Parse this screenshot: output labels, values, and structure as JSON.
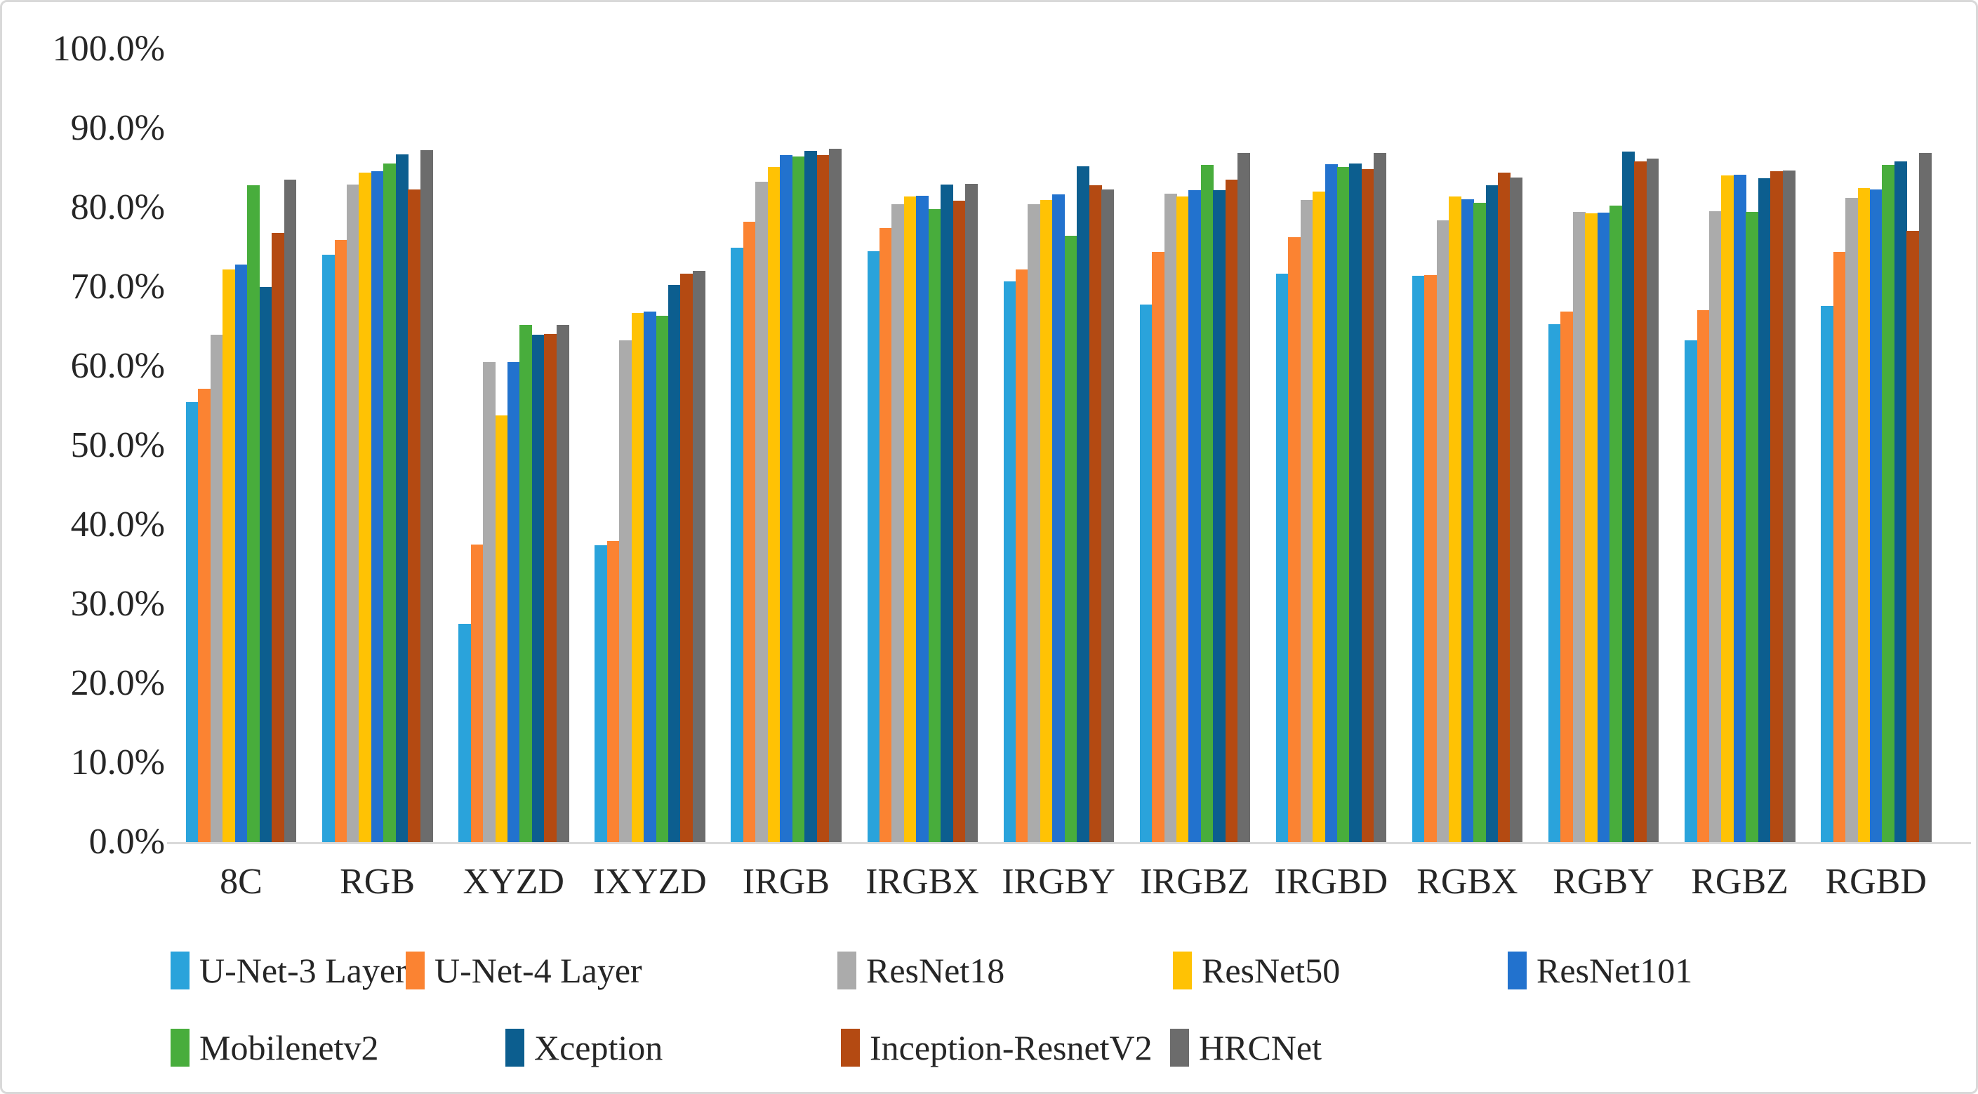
{
  "figure": {
    "background": "#ffffff",
    "border_color": "#d9d9d9",
    "axis_line_color": "#d9d9d9",
    "text_color": "#262626"
  },
  "chart_data": {
    "type": "bar",
    "title": "",
    "xlabel": "",
    "ylabel": "",
    "grid": false,
    "legend_position": "bottom",
    "y_axis": {
      "min": 0,
      "max": 100,
      "step": 10,
      "tick_labels": [
        "0.0%",
        "10.0%",
        "20.0%",
        "30.0%",
        "40.0%",
        "50.0%",
        "60.0%",
        "70.0%",
        "80.0%",
        "90.0%",
        "100.0%"
      ]
    },
    "categories": [
      "8C",
      "RGB",
      "XYZD",
      "IXYZD",
      "IRGB",
      "IRGBX",
      "IRGBY",
      "IRGBZ",
      "IRGBD",
      "RGBX",
      "RGBY",
      "RGBZ",
      "RGBD"
    ],
    "series": [
      {
        "name": "U-Net-3 Layer",
        "color": "#2aa3db",
        "values": [
          55.5,
          74.1,
          27.5,
          37.4,
          75.0,
          74.5,
          70.7,
          67.8,
          71.7,
          71.4,
          65.3,
          63.3,
          67.6
        ]
      },
      {
        "name": "U-Net-4 Layer",
        "color": "#fb8332",
        "values": [
          57.2,
          75.9,
          37.5,
          38.0,
          78.2,
          77.4,
          72.2,
          74.4,
          76.3,
          71.5,
          66.9,
          67.1,
          74.4
        ]
      },
      {
        "name": "ResNet18",
        "color": "#ababab",
        "values": [
          64.0,
          82.9,
          60.5,
          63.3,
          83.3,
          80.4,
          80.4,
          81.8,
          81.0,
          78.4,
          79.5,
          79.6,
          81.2
        ]
      },
      {
        "name": "ResNet50",
        "color": "#ffc204",
        "values": [
          72.2,
          84.4,
          53.8,
          66.7,
          85.1,
          81.4,
          81.0,
          81.4,
          82.0,
          81.4,
          79.3,
          84.1,
          82.5
        ]
      },
      {
        "name": "ResNet101",
        "color": "#2272ce",
        "values": [
          72.8,
          84.6,
          60.5,
          66.9,
          86.6,
          81.5,
          81.7,
          82.2,
          85.5,
          81.1,
          79.4,
          84.2,
          82.3
        ]
      },
      {
        "name": "Mobilenetv2",
        "color": "#48ad3c",
        "values": [
          82.8,
          85.6,
          65.2,
          66.4,
          86.5,
          79.8,
          76.5,
          85.4,
          85.1,
          80.6,
          80.3,
          79.5,
          85.4
        ]
      },
      {
        "name": "Xception",
        "color": "#0c5e8f",
        "values": [
          70.0,
          86.7,
          64.0,
          70.3,
          87.2,
          82.9,
          85.2,
          82.2,
          85.6,
          82.8,
          87.1,
          83.7,
          85.8
        ]
      },
      {
        "name": "Inception-ResnetV2",
        "color": "#b44a12",
        "values": [
          76.8,
          82.3,
          64.1,
          71.7,
          86.6,
          80.9,
          82.8,
          83.5,
          84.9,
          84.4,
          85.8,
          84.6,
          77.1
        ]
      },
      {
        "name": "HRCNet",
        "color": "#6c6c6c",
        "values": [
          83.5,
          87.3,
          65.2,
          72.0,
          87.4,
          83.0,
          82.3,
          86.9,
          86.9,
          83.8,
          86.2,
          84.7,
          86.9
        ]
      }
    ]
  }
}
